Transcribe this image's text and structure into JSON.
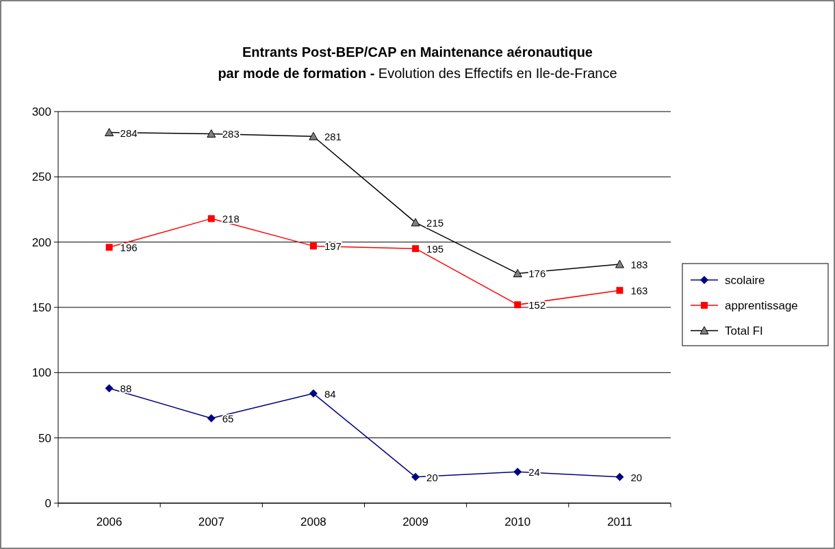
{
  "chart_data": {
    "type": "line",
    "title": "Entrants Post-BEP/CAP en Maintenance aéronautique par mode de formation -",
    "subtitle": "Evolution des Effectifs en Ile-de-France",
    "categories": [
      "2006",
      "2007",
      "2008",
      "2009",
      "2010",
      "2011"
    ],
    "series": [
      {
        "name": "scolaire",
        "color": "#000080",
        "marker": "diamond",
        "values": [
          88,
          65,
          84,
          20,
          24,
          20
        ]
      },
      {
        "name": "apprentissage",
        "color": "#ff0000",
        "marker": "square",
        "values": [
          196,
          218,
          197,
          195,
          152,
          163
        ]
      },
      {
        "name": "Total FI",
        "color": "#000000",
        "marker": "triangle",
        "values": [
          284,
          283,
          281,
          215,
          176,
          183
        ]
      }
    ],
    "ylim": [
      0,
      300
    ],
    "yticks": [
      0,
      50,
      100,
      150,
      200,
      250,
      300
    ],
    "grid": "y",
    "legend": "right",
    "data_labels": true,
    "line_style": "solid"
  }
}
